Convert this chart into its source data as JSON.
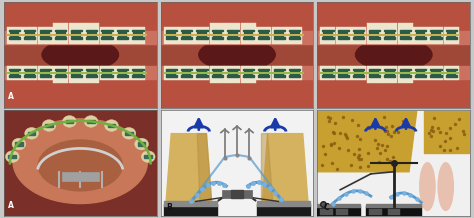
{
  "figsize": [
    4.74,
    2.18
  ],
  "dpi": 100,
  "bg_color": "#c8c8c8",
  "panel_bg": "#f0f0f0",
  "photo_gum_color": "#c87060",
  "photo_cheek_color": "#b85040",
  "tooth_color_light": "#f0e8d0",
  "bracket_color": "#3a6a5a",
  "wire_color_gold": "#c8b060",
  "wire_color_green": "#90b848",
  "diagram_bg": "#e8e8e8",
  "diag_tooth_color": "#d4b870",
  "diag_gum_dark": "#222222",
  "diag_arrow_color": "#1a3aaa",
  "diag_chain_color": "#70aacc",
  "diag_bone_color": "#c8a030",
  "diag_tissue_color": "#e8c0b0",
  "diag_metal_color": "#888888",
  "diag_screw_dark": "#333333"
}
